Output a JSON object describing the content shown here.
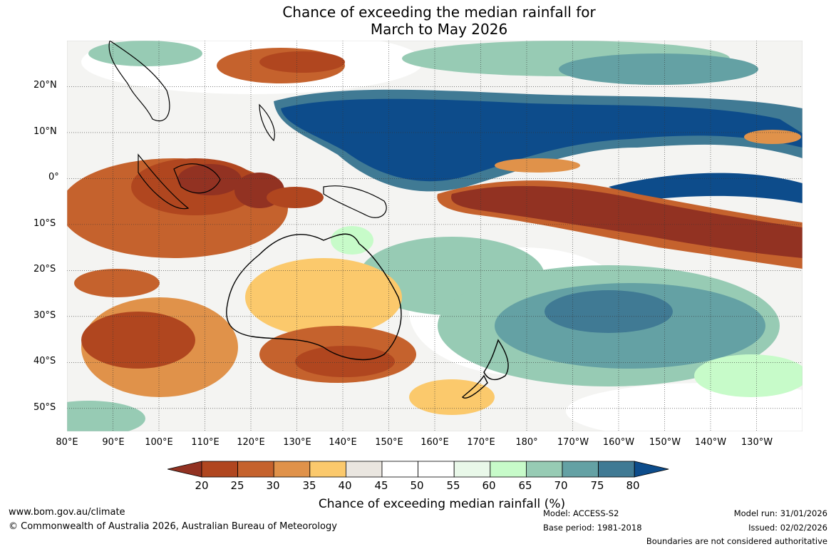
{
  "title": {
    "line1": "Chance of exceeding the median rainfall for",
    "line2": "March to May 2026"
  },
  "map": {
    "lat_ticks": [
      "20°N",
      "10°N",
      "0°",
      "10°S",
      "20°S",
      "30°S",
      "40°S",
      "50°S"
    ],
    "lon_ticks": [
      "80°E",
      "90°E",
      "100°E",
      "110°E",
      "120°E",
      "130°E",
      "140°E",
      "150°E",
      "160°E",
      "170°E",
      "180°",
      "170°W",
      "160°W",
      "150°W",
      "140°W",
      "130°W"
    ],
    "extent": {
      "lon_min": 80,
      "lon_max": 240,
      "lat_min": -55,
      "lat_max": 30
    }
  },
  "legend": {
    "label": "Chance of exceeding median rainfall (%)",
    "ticks": [
      "20",
      "25",
      "30",
      "35",
      "40",
      "45",
      "50",
      "55",
      "60",
      "65",
      "70",
      "75",
      "80"
    ],
    "colors": [
      "#923222",
      "#b0461f",
      "#c5622d",
      "#e0924a",
      "#fbc96c",
      "#eae6e0",
      "#ffffff",
      "#ffffff",
      "#e9f8e9",
      "#c7fbc9",
      "#97cbb4",
      "#64a1a4",
      "#407a94",
      "#0d4c8b"
    ]
  },
  "footer": {
    "url": "www.bom.gov.au/climate",
    "copyright": "© Commonwealth of Australia 2026, Australian Bureau of Meteorology",
    "model": "Model: ACCESS-S2",
    "base_period": "Base period: 1981-2018",
    "model_run": "Model run: 31/01/2026",
    "issued": "Issued: 02/02/2026",
    "disclaimer": "Boundaries are not considered authoritative"
  }
}
